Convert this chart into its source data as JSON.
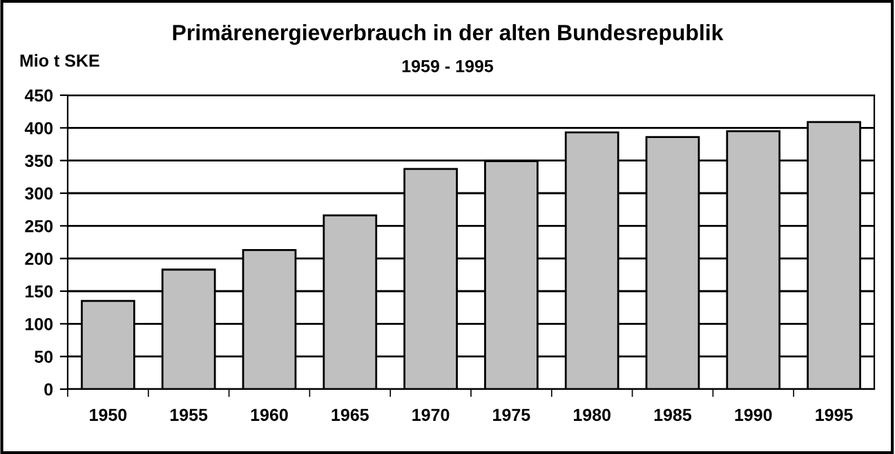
{
  "chart_data": {
    "type": "bar",
    "title": "Primärenergieverbrauch in der alten Bundesrepublik",
    "subtitle": "1959 - 1995",
    "ylabel": "Mio t SKE",
    "categories": [
      "1950",
      "1955",
      "1960",
      "1965",
      "1970",
      "1975",
      "1980",
      "1985",
      "1990",
      "1995"
    ],
    "values": [
      135,
      183,
      213,
      266,
      337,
      349,
      393,
      386,
      395,
      409
    ],
    "color": "#c0c0c0",
    "ylim": [
      0,
      450
    ],
    "yticks": [
      0,
      50,
      100,
      150,
      200,
      250,
      300,
      350,
      400,
      450
    ],
    "grid": "y",
    "legend": false
  }
}
